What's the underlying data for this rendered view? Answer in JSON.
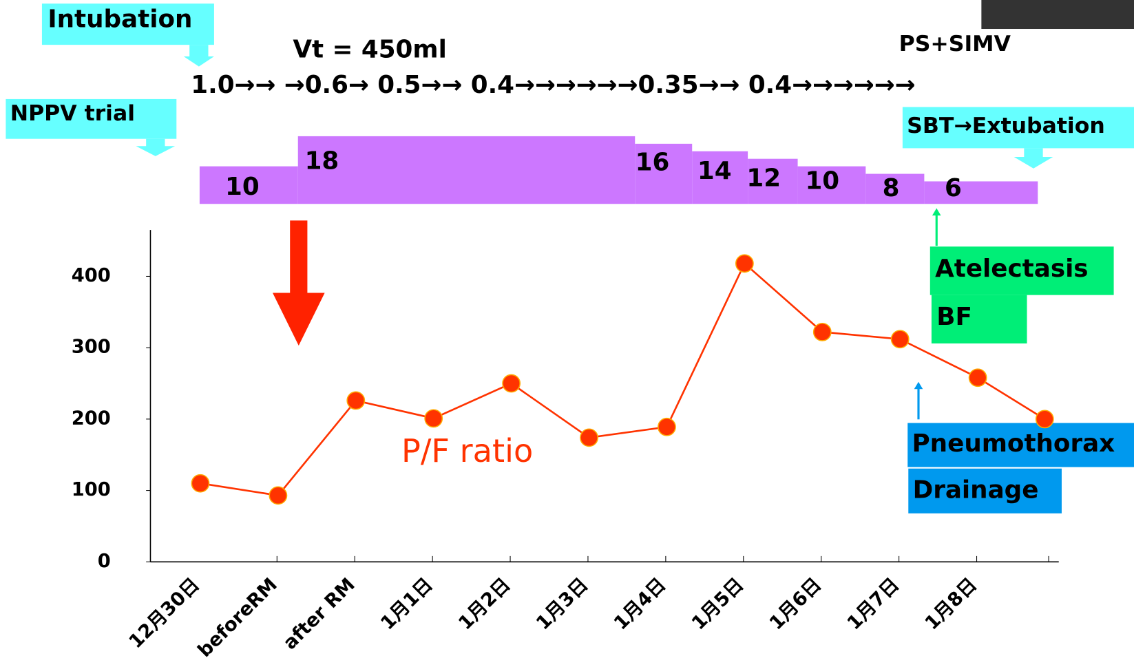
{
  "annotations": {
    "intubation": "Intubation",
    "nppv": "NPPV trial",
    "vt": "Vt = 450ml",
    "mode": "PS+SIMV",
    "fio2": "1.0→→ →0.6→ 0.5→→ 0.4→→→→→→0.35→→ 0.4→→→→→→",
    "sbt": "SBT→Extubation",
    "atelectasis": "Atelectasis",
    "bf": "BF",
    "pneumothorax": "Pneumothorax",
    "drainage": "Drainage"
  },
  "peep": {
    "values": [
      10,
      18,
      16,
      14,
      12,
      10,
      8,
      6
    ],
    "color": "#cc77ff"
  },
  "chart_data": {
    "type": "line",
    "categories": [
      "12月30日",
      "beforeRM",
      "after RM",
      "1月1日",
      "1月2日",
      "1月3日",
      "1月4日",
      "1月5日",
      "1月6日",
      "1月7日",
      "1月8日",
      null
    ],
    "series": [
      {
        "name": "P/F ratio",
        "color": "#ff3300",
        "values": [
          110,
          93,
          226,
          201,
          250,
          174,
          189,
          418,
          322,
          312,
          258,
          200
        ]
      }
    ],
    "ylim": [
      0,
      465
    ],
    "yticks": [
      0,
      100,
      200,
      300,
      400
    ]
  }
}
